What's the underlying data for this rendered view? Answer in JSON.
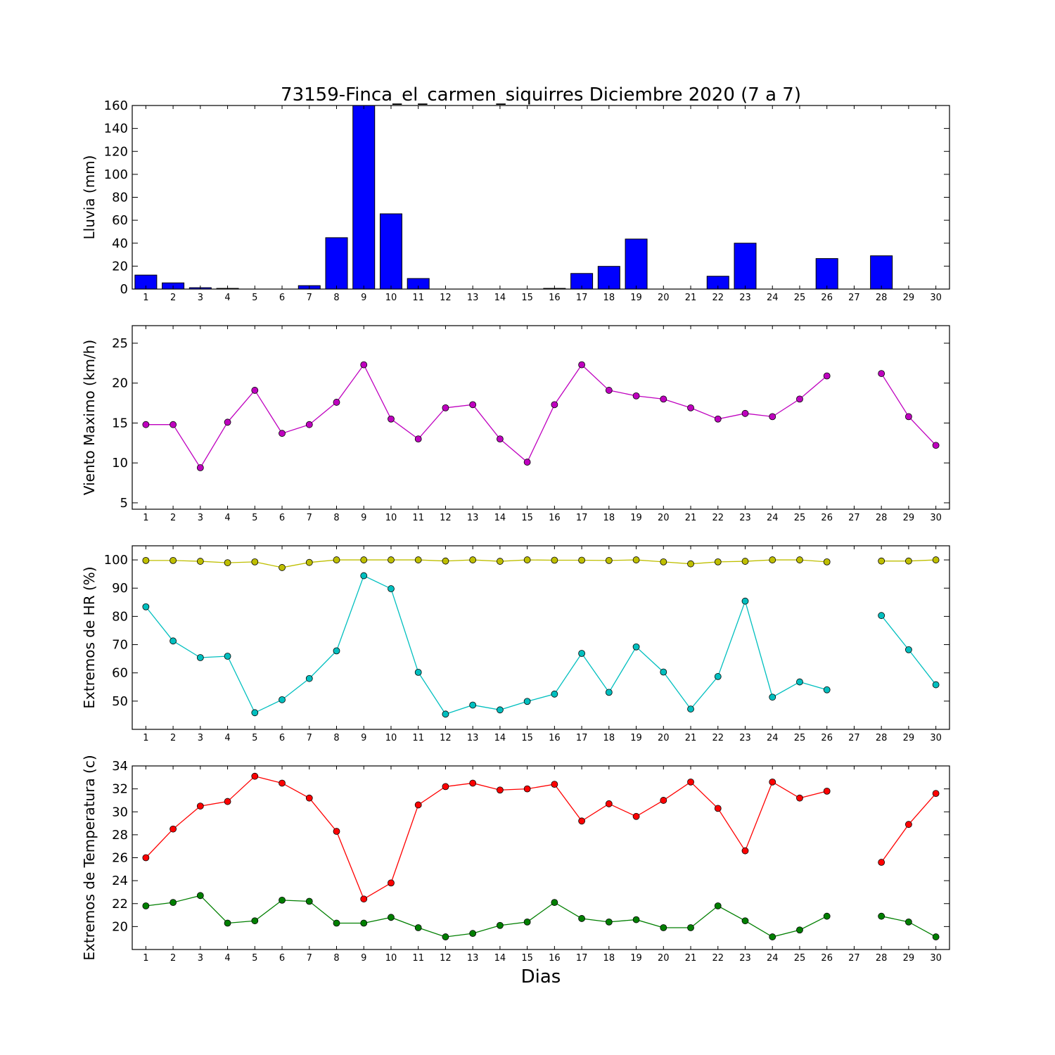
{
  "figure": {
    "title": "73159-Finca_el_carmen_siquirres Diciembre 2020  (7 a 7)",
    "xlabel": "Dias"
  },
  "chart_data": [
    {
      "type": "bar",
      "ylabel": "Lluvia (mm)",
      "x": [
        1,
        2,
        3,
        4,
        5,
        6,
        7,
        8,
        9,
        10,
        11,
        12,
        13,
        14,
        15,
        16,
        17,
        18,
        19,
        20,
        21,
        22,
        23,
        24,
        25,
        26,
        27,
        28,
        29,
        30
      ],
      "xlim": [
        0.5,
        30.5
      ],
      "ylim": [
        0,
        160
      ],
      "yticks": [
        0,
        20,
        40,
        60,
        80,
        100,
        120,
        140,
        160
      ],
      "series": [
        {
          "color": "#0000ff",
          "values": [
            12.2,
            5.4,
            1.2,
            0.6,
            0,
            0,
            3.0,
            44.8,
            160,
            65.6,
            9.2,
            0,
            0,
            0,
            0,
            0.6,
            13.6,
            19.8,
            43.6,
            0,
            0,
            11.2,
            40.0,
            0,
            0,
            26.6,
            0,
            29.0,
            0,
            0
          ]
        }
      ]
    },
    {
      "type": "line",
      "ylabel": "Viento Maximo (km/h)",
      "x": [
        1,
        2,
        3,
        4,
        5,
        6,
        7,
        8,
        9,
        10,
        11,
        12,
        13,
        14,
        15,
        16,
        17,
        18,
        19,
        20,
        21,
        22,
        23,
        24,
        25,
        26,
        27,
        28,
        29,
        30
      ],
      "xlim": [
        0.5,
        30.5
      ],
      "ylim": [
        4.2,
        27.2
      ],
      "yticks": [
        5,
        10,
        15,
        20,
        25
      ],
      "series": [
        {
          "color": "#bf00bf",
          "values": [
            14.8,
            14.8,
            9.4,
            15.1,
            19.1,
            13.7,
            14.8,
            17.6,
            22.3,
            15.5,
            13.0,
            16.9,
            17.3,
            13.0,
            10.1,
            17.3,
            22.3,
            19.1,
            18.4,
            18.0,
            16.9,
            15.5,
            16.2,
            15.8,
            18.0,
            20.9,
            null,
            21.2,
            15.8,
            12.2
          ]
        }
      ]
    },
    {
      "type": "line",
      "ylabel": "Extremos de HR (%)",
      "x": [
        1,
        2,
        3,
        4,
        5,
        6,
        7,
        8,
        9,
        10,
        11,
        12,
        13,
        14,
        15,
        16,
        17,
        18,
        19,
        20,
        21,
        22,
        23,
        24,
        25,
        26,
        27,
        28,
        29,
        30
      ],
      "xlim": [
        0.5,
        30.5
      ],
      "ylim": [
        40,
        105
      ],
      "yticks": [
        50,
        60,
        70,
        80,
        90,
        100
      ],
      "series": [
        {
          "color": "#bfbf00",
          "values": [
            99.8,
            99.8,
            99.5,
            99.0,
            99.3,
            97.3,
            99.1,
            100,
            100,
            100,
            100,
            99.6,
            100,
            99.5,
            100,
            99.9,
            99.9,
            99.8,
            100,
            99.3,
            98.6,
            99.3,
            99.5,
            100,
            100,
            99.3,
            null,
            99.6,
            99.6,
            100
          ]
        },
        {
          "color": "#00bfbf",
          "values": [
            83.4,
            71.3,
            65.4,
            65.9,
            45.9,
            50.5,
            58.0,
            67.8,
            94.4,
            89.8,
            60.2,
            45.4,
            48.6,
            46.9,
            49.9,
            52.5,
            66.9,
            53.1,
            69.2,
            60.3,
            47.2,
            58.7,
            85.4,
            51.4,
            56.8,
            54.0,
            null,
            80.3,
            68.2,
            55.8
          ]
        }
      ]
    },
    {
      "type": "line",
      "ylabel": "Extremos de Temperatura (c)",
      "x": [
        1,
        2,
        3,
        4,
        5,
        6,
        7,
        8,
        9,
        10,
        11,
        12,
        13,
        14,
        15,
        16,
        17,
        18,
        19,
        20,
        21,
        22,
        23,
        24,
        25,
        26,
        27,
        28,
        29,
        30
      ],
      "xlim": [
        0.5,
        30.5
      ],
      "ylim": [
        18,
        34
      ],
      "yticks": [
        20,
        22,
        24,
        26,
        28,
        30,
        32,
        34
      ],
      "series": [
        {
          "color": "#ff0000",
          "values": [
            26.0,
            28.5,
            30.5,
            30.9,
            33.1,
            32.5,
            31.2,
            28.3,
            22.4,
            23.8,
            30.6,
            32.2,
            32.5,
            31.9,
            32.0,
            32.4,
            29.2,
            30.7,
            29.6,
            31.0,
            32.6,
            30.3,
            26.6,
            32.6,
            31.2,
            31.8,
            null,
            25.6,
            28.9,
            31.6
          ]
        },
        {
          "color": "#007f00",
          "values": [
            21.8,
            22.1,
            22.7,
            20.3,
            20.5,
            22.3,
            22.2,
            20.3,
            20.3,
            20.8,
            19.9,
            19.1,
            19.4,
            20.1,
            20.4,
            22.1,
            20.7,
            20.4,
            20.6,
            19.9,
            19.9,
            21.8,
            20.5,
            19.1,
            19.7,
            20.9,
            null,
            20.9,
            20.4,
            19.1
          ]
        }
      ]
    }
  ]
}
